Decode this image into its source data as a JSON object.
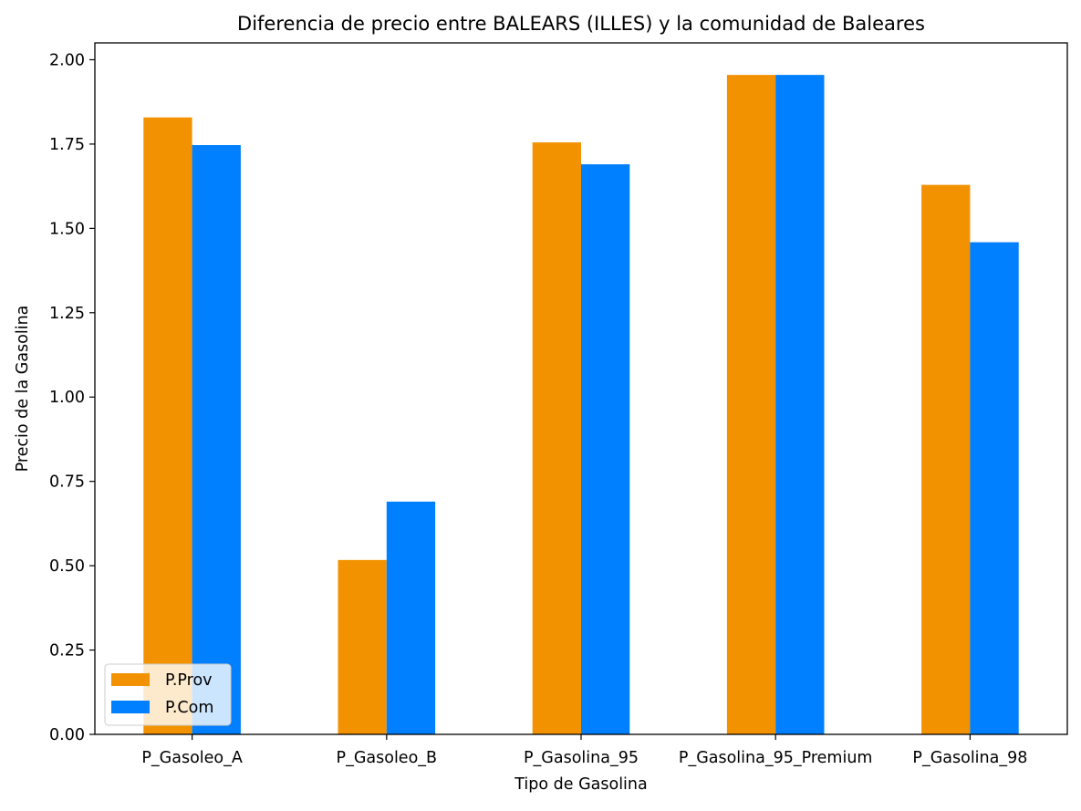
{
  "chart_data": {
    "type": "bar",
    "title": "Diferencia de precio entre BALEARS (ILLES) y la comunidad de Baleares",
    "xlabel": "Tipo de Gasolina",
    "ylabel": "Precio de la Gasolina",
    "categories": [
      "P_Gasoleo_A",
      "P_Gasoleo_B",
      "P_Gasolina_95",
      "P_Gasolina_95_Premium",
      "P_Gasolina_98"
    ],
    "series": [
      {
        "name": "P.Prov",
        "color": "#f39200",
        "values": [
          1.829,
          0.517,
          1.755,
          1.955,
          1.629
        ]
      },
      {
        "name": "P.Com",
        "color": "#007fff",
        "values": [
          1.747,
          0.69,
          1.69,
          1.955,
          1.459
        ]
      }
    ],
    "ylim": [
      0,
      2.05
    ],
    "yticks": [
      0.0,
      0.25,
      0.5,
      0.75,
      1.0,
      1.25,
      1.5,
      1.75,
      2.0
    ],
    "ytick_labels": [
      "0.00",
      "0.25",
      "0.50",
      "0.75",
      "1.00",
      "1.25",
      "1.50",
      "1.75",
      "2.00"
    ],
    "grid": false,
    "legend_position": "lower-left"
  }
}
